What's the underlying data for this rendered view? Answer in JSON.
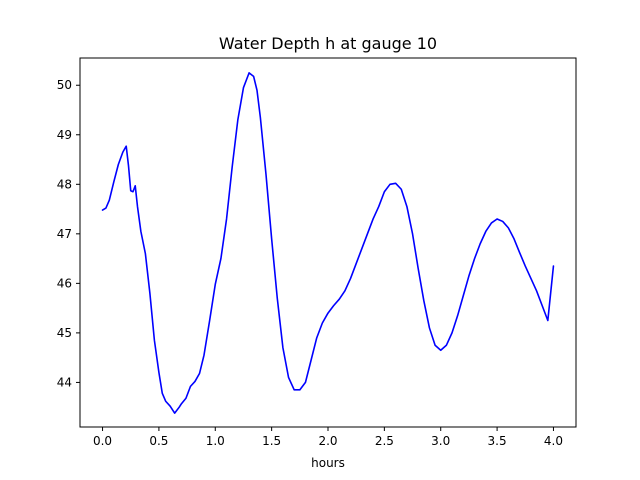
{
  "chart_data": {
    "type": "line",
    "title": "Water Depth h at gauge 10",
    "xlabel": "hours",
    "ylabel": "",
    "xlim": [
      -0.2,
      4.2
    ],
    "ylim": [
      43.1,
      50.55
    ],
    "grid": false,
    "xticks": [
      0.0,
      0.5,
      1.0,
      1.5,
      2.0,
      2.5,
      3.0,
      3.5,
      4.0
    ],
    "xtick_labels": [
      "0.0",
      "0.5",
      "1.0",
      "1.5",
      "2.0",
      "2.5",
      "3.0",
      "3.5",
      "4.0"
    ],
    "yticks": [
      44,
      45,
      46,
      47,
      48,
      49,
      50
    ],
    "ytick_labels": [
      "44",
      "45",
      "46",
      "47",
      "48",
      "49",
      "50"
    ],
    "series": [
      {
        "color": "#0000ff",
        "x": [
          0.0,
          0.03,
          0.06,
          0.1,
          0.14,
          0.18,
          0.21,
          0.23,
          0.25,
          0.27,
          0.29,
          0.31,
          0.34,
          0.38,
          0.42,
          0.46,
          0.5,
          0.53,
          0.56,
          0.6,
          0.64,
          0.68,
          0.7,
          0.74,
          0.78,
          0.82,
          0.86,
          0.9,
          0.95,
          1.0,
          1.05,
          1.1,
          1.15,
          1.2,
          1.25,
          1.3,
          1.34,
          1.37,
          1.4,
          1.45,
          1.5,
          1.55,
          1.6,
          1.65,
          1.7,
          1.75,
          1.8,
          1.85,
          1.9,
          1.95,
          2.0,
          2.05,
          2.1,
          2.15,
          2.2,
          2.25,
          2.3,
          2.35,
          2.4,
          2.45,
          2.5,
          2.55,
          2.6,
          2.65,
          2.7,
          2.75,
          2.8,
          2.85,
          2.9,
          2.95,
          3.0,
          3.05,
          3.1,
          3.15,
          3.2,
          3.25,
          3.3,
          3.35,
          3.4,
          3.45,
          3.5,
          3.55,
          3.6,
          3.65,
          3.7,
          3.75,
          3.8,
          3.85,
          3.9,
          3.95,
          4.0
        ],
        "y": [
          47.48,
          47.52,
          47.68,
          48.05,
          48.4,
          48.65,
          48.77,
          48.38,
          47.87,
          47.85,
          47.97,
          47.55,
          47.05,
          46.6,
          45.8,
          44.85,
          44.2,
          43.78,
          43.62,
          43.52,
          43.38,
          43.5,
          43.57,
          43.68,
          43.92,
          44.02,
          44.18,
          44.55,
          45.25,
          45.98,
          46.5,
          47.3,
          48.35,
          49.3,
          49.95,
          50.25,
          50.18,
          49.9,
          49.35,
          48.2,
          46.9,
          45.7,
          44.7,
          44.1,
          43.85,
          43.85,
          44.0,
          44.45,
          44.9,
          45.2,
          45.4,
          45.55,
          45.68,
          45.85,
          46.1,
          46.4,
          46.7,
          47.0,
          47.3,
          47.55,
          47.85,
          48.0,
          48.02,
          47.9,
          47.55,
          47.0,
          46.3,
          45.65,
          45.1,
          44.75,
          44.65,
          44.75,
          45.0,
          45.35,
          45.75,
          46.15,
          46.5,
          46.8,
          47.05,
          47.22,
          47.3,
          47.25,
          47.12,
          46.9,
          46.62,
          46.35,
          46.1,
          45.85,
          45.55,
          45.25,
          46.35
        ]
      }
    ]
  }
}
